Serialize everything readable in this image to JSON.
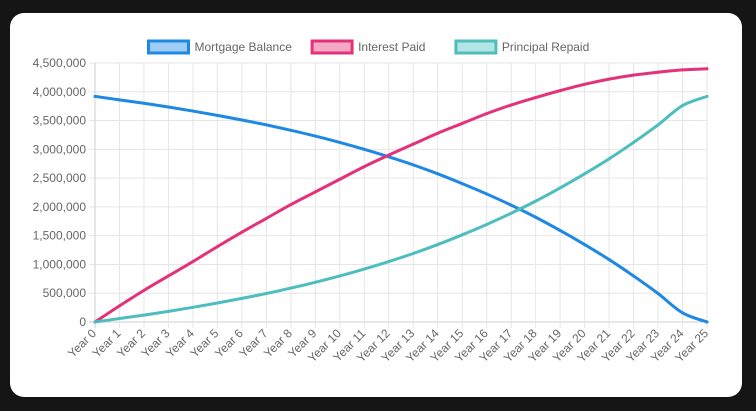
{
  "chart_data": {
    "type": "line",
    "categories": [
      "Year 0",
      "Year 1",
      "Year 2",
      "Year 3",
      "Year 4",
      "Year 5",
      "Year 6",
      "Year 7",
      "Year 8",
      "Year 9",
      "Year 10",
      "Year 11",
      "Year 12",
      "Year 13",
      "Year 14",
      "Year 15",
      "Year 16",
      "Year 17",
      "Year 18",
      "Year 19",
      "Year 20",
      "Year 21",
      "Year 22",
      "Year 23",
      "Year 24",
      "Year 25"
    ],
    "series": [
      {
        "name": "Mortgage Balance",
        "color": "#1e88e5",
        "fill": "#9fccf2",
        "values": [
          3920000,
          3860000,
          3800000,
          3735000,
          3665000,
          3590000,
          3510000,
          3425000,
          3330000,
          3230000,
          3120000,
          3000000,
          2870000,
          2730000,
          2575000,
          2405000,
          2225000,
          2030000,
          1820000,
          1590000,
          1345000,
          1085000,
          800000,
          495000,
          160000,
          0
        ]
      },
      {
        "name": "Interest Paid",
        "color": "#e3327a",
        "fill": "#f5a9c5",
        "values": [
          0,
          280000,
          550000,
          800000,
          1050000,
          1310000,
          1560000,
          1800000,
          2040000,
          2260000,
          2480000,
          2700000,
          2900000,
          3090000,
          3280000,
          3450000,
          3620000,
          3770000,
          3900000,
          4020000,
          4130000,
          4220000,
          4290000,
          4340000,
          4380000,
          4400000
        ]
      },
      {
        "name": "Principal Repaid",
        "color": "#4dbdbd",
        "fill": "#b4e5e5",
        "values": [
          0,
          60000,
          120000,
          185000,
          255000,
          330000,
          410000,
          495000,
          590000,
          690000,
          800000,
          920000,
          1050000,
          1190000,
          1345000,
          1515000,
          1695000,
          1890000,
          2100000,
          2330000,
          2575000,
          2835000,
          3120000,
          3425000,
          3760000,
          3920000
        ]
      }
    ],
    "ylim": [
      0,
      4500000
    ],
    "yticks": [
      "0",
      "500,000",
      "1,000,000",
      "1,500,000",
      "2,000,000",
      "2,500,000",
      "3,000,000",
      "3,500,000",
      "4,000,000",
      "4,500,000"
    ],
    "legend_position": "top",
    "grid": true
  }
}
